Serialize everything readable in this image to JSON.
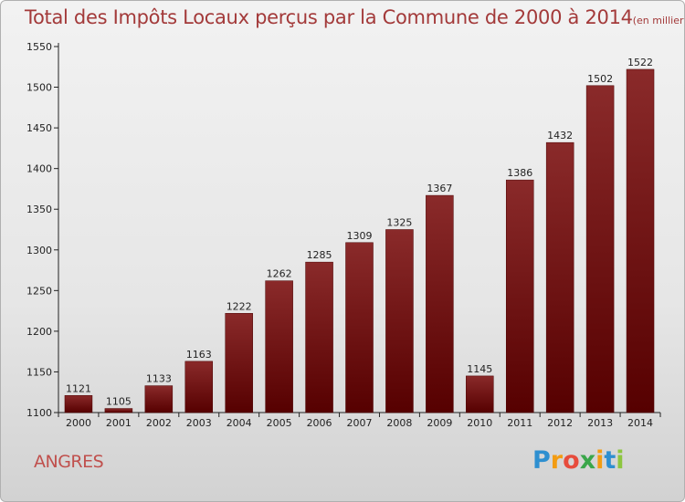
{
  "chart_data": {
    "type": "bar",
    "title": "Total des Impôts Locaux perçus par la Commune de 2000 à 2014",
    "subtitle": "(en milliers d'€)",
    "categories": [
      "2000",
      "2001",
      "2002",
      "2003",
      "2004",
      "2005",
      "2006",
      "2007",
      "2008",
      "2009",
      "2010",
      "2011",
      "2012",
      "2013",
      "2014"
    ],
    "values": [
      1121,
      1105,
      1133,
      1163,
      1222,
      1262,
      1285,
      1309,
      1325,
      1367,
      1145,
      1386,
      1432,
      1502,
      1522
    ],
    "ylim": [
      1100,
      1550
    ],
    "yticks": [
      1100,
      1150,
      1200,
      1250,
      1300,
      1350,
      1400,
      1450,
      1500,
      1550
    ],
    "xlabel": "",
    "ylabel": "",
    "grid": false,
    "legend": "none",
    "bar_color": "#7a1a1a"
  },
  "commune": "ANGRES",
  "logo": {
    "letters": [
      "P",
      "r",
      "o",
      "x",
      "i",
      "t",
      "i"
    ],
    "colors": [
      "#2e8fd0",
      "#f39c12",
      "#e74c3c",
      "#3aa64a",
      "#f39c12",
      "#2e8fd0",
      "#8dc63f"
    ]
  }
}
